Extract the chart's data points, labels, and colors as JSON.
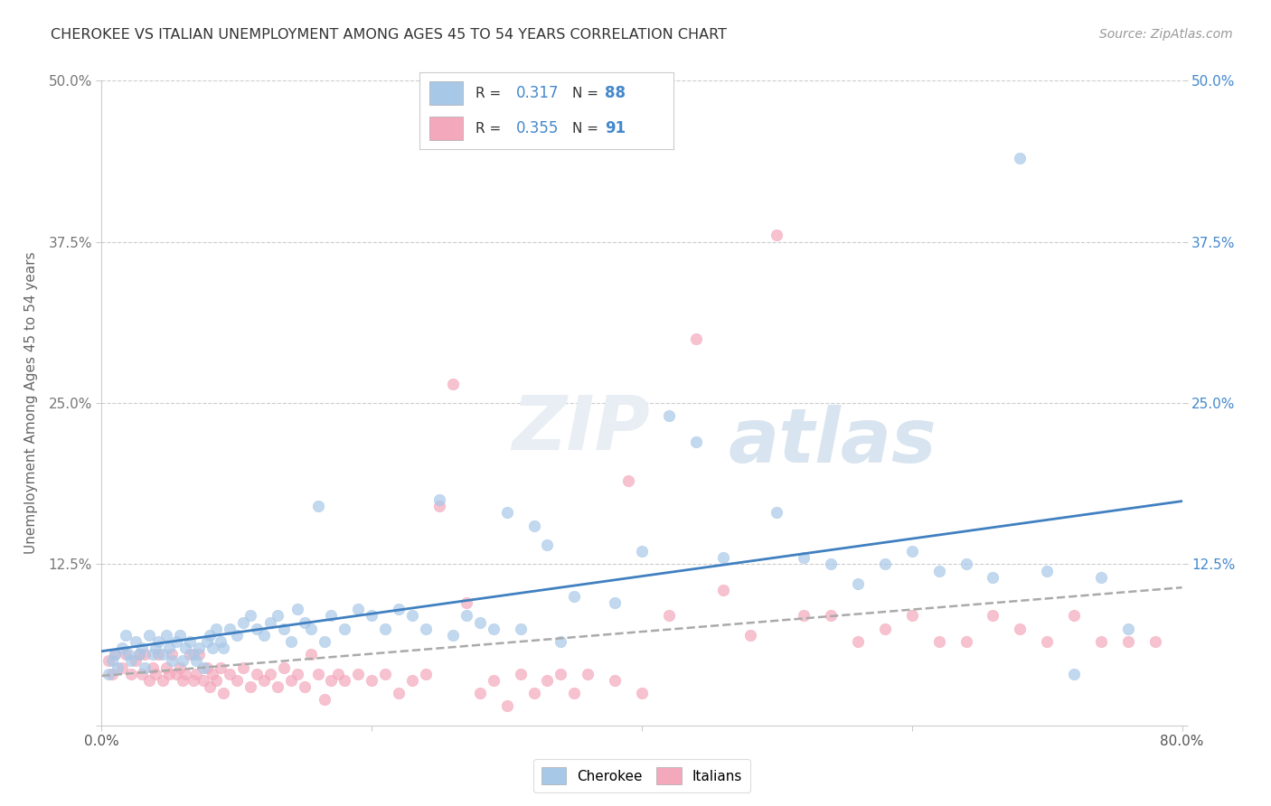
{
  "title": "CHEROKEE VS ITALIAN UNEMPLOYMENT AMONG AGES 45 TO 54 YEARS CORRELATION CHART",
  "source": "Source: ZipAtlas.com",
  "ylabel": "Unemployment Among Ages 45 to 54 years",
  "xlim": [
    0.0,
    0.8
  ],
  "ylim": [
    0.0,
    0.5
  ],
  "xticks": [
    0.0,
    0.2,
    0.4,
    0.6,
    0.8
  ],
  "yticks": [
    0.0,
    0.125,
    0.25,
    0.375,
    0.5
  ],
  "xtick_labels": [
    "0.0%",
    "",
    "",
    "",
    "80.0%"
  ],
  "ytick_labels_left": [
    "",
    "12.5%",
    "25.0%",
    "37.5%",
    "50.0%"
  ],
  "ytick_labels_right": [
    "",
    "12.5%",
    "25.0%",
    "37.5%",
    "50.0%"
  ],
  "legend_labels": [
    "Cherokee",
    "Italians"
  ],
  "R_cherokee": 0.317,
  "N_cherokee": 88,
  "R_italian": 0.355,
  "N_italian": 91,
  "cherokee_color": "#a8c8e8",
  "italian_color": "#f4a8bc",
  "cherokee_line_color": "#4080c0",
  "italian_line_color": "#c0c0c0",
  "title_color": "#333333",
  "source_color": "#999999",
  "grid_color": "#cccccc",
  "right_tick_color": "#4488cc",
  "background_color": "#ffffff",
  "watermark_color": "#e8eef4",
  "cherokee_x": [
    0.005,
    0.008,
    0.01,
    0.012,
    0.015,
    0.018,
    0.02,
    0.022,
    0.025,
    0.028,
    0.03,
    0.032,
    0.035,
    0.038,
    0.04,
    0.042,
    0.045,
    0.048,
    0.05,
    0.052,
    0.055,
    0.058,
    0.06,
    0.062,
    0.065,
    0.068,
    0.07,
    0.072,
    0.075,
    0.078,
    0.08,
    0.082,
    0.085,
    0.088,
    0.09,
    0.095,
    0.1,
    0.105,
    0.11,
    0.115,
    0.12,
    0.125,
    0.13,
    0.135,
    0.14,
    0.145,
    0.15,
    0.155,
    0.16,
    0.165,
    0.17,
    0.18,
    0.19,
    0.2,
    0.21,
    0.22,
    0.23,
    0.24,
    0.25,
    0.26,
    0.27,
    0.28,
    0.29,
    0.3,
    0.31,
    0.32,
    0.33,
    0.34,
    0.35,
    0.38,
    0.4,
    0.42,
    0.44,
    0.46,
    0.5,
    0.52,
    0.54,
    0.56,
    0.58,
    0.6,
    0.62,
    0.64,
    0.66,
    0.68,
    0.7,
    0.72,
    0.74,
    0.76
  ],
  "cherokee_y": [
    0.04,
    0.05,
    0.055,
    0.045,
    0.06,
    0.07,
    0.055,
    0.05,
    0.065,
    0.055,
    0.06,
    0.045,
    0.07,
    0.055,
    0.06,
    0.065,
    0.055,
    0.07,
    0.06,
    0.05,
    0.065,
    0.07,
    0.05,
    0.06,
    0.065,
    0.055,
    0.05,
    0.06,
    0.045,
    0.065,
    0.07,
    0.06,
    0.075,
    0.065,
    0.06,
    0.075,
    0.07,
    0.08,
    0.085,
    0.075,
    0.07,
    0.08,
    0.085,
    0.075,
    0.065,
    0.09,
    0.08,
    0.075,
    0.17,
    0.065,
    0.085,
    0.075,
    0.09,
    0.085,
    0.075,
    0.09,
    0.085,
    0.075,
    0.175,
    0.07,
    0.085,
    0.08,
    0.075,
    0.165,
    0.075,
    0.155,
    0.14,
    0.065,
    0.1,
    0.095,
    0.135,
    0.24,
    0.22,
    0.13,
    0.165,
    0.13,
    0.125,
    0.11,
    0.125,
    0.135,
    0.12,
    0.125,
    0.115,
    0.44,
    0.12,
    0.04,
    0.115,
    0.075
  ],
  "italian_x": [
    0.005,
    0.008,
    0.01,
    0.015,
    0.018,
    0.022,
    0.025,
    0.028,
    0.03,
    0.032,
    0.035,
    0.038,
    0.04,
    0.042,
    0.045,
    0.048,
    0.05,
    0.052,
    0.055,
    0.058,
    0.06,
    0.062,
    0.065,
    0.068,
    0.07,
    0.072,
    0.075,
    0.078,
    0.08,
    0.082,
    0.085,
    0.088,
    0.09,
    0.095,
    0.1,
    0.105,
    0.11,
    0.115,
    0.12,
    0.125,
    0.13,
    0.135,
    0.14,
    0.145,
    0.15,
    0.155,
    0.16,
    0.165,
    0.17,
    0.175,
    0.18,
    0.19,
    0.2,
    0.21,
    0.22,
    0.23,
    0.24,
    0.25,
    0.26,
    0.27,
    0.28,
    0.29,
    0.3,
    0.31,
    0.32,
    0.33,
    0.34,
    0.35,
    0.36,
    0.38,
    0.39,
    0.4,
    0.42,
    0.44,
    0.46,
    0.48,
    0.5,
    0.52,
    0.54,
    0.56,
    0.58,
    0.6,
    0.62,
    0.64,
    0.66,
    0.68,
    0.7,
    0.72,
    0.74,
    0.76,
    0.78
  ],
  "italian_y": [
    0.05,
    0.04,
    0.055,
    0.045,
    0.055,
    0.04,
    0.05,
    0.055,
    0.04,
    0.055,
    0.035,
    0.045,
    0.04,
    0.055,
    0.035,
    0.045,
    0.04,
    0.055,
    0.04,
    0.045,
    0.035,
    0.04,
    0.055,
    0.035,
    0.04,
    0.055,
    0.035,
    0.045,
    0.03,
    0.04,
    0.035,
    0.045,
    0.025,
    0.04,
    0.035,
    0.045,
    0.03,
    0.04,
    0.035,
    0.04,
    0.03,
    0.045,
    0.035,
    0.04,
    0.03,
    0.055,
    0.04,
    0.02,
    0.035,
    0.04,
    0.035,
    0.04,
    0.035,
    0.04,
    0.025,
    0.035,
    0.04,
    0.17,
    0.265,
    0.095,
    0.025,
    0.035,
    0.015,
    0.04,
    0.025,
    0.035,
    0.04,
    0.025,
    0.04,
    0.035,
    0.19,
    0.025,
    0.085,
    0.3,
    0.105,
    0.07,
    0.38,
    0.085,
    0.085,
    0.065,
    0.075,
    0.085,
    0.065,
    0.065,
    0.085,
    0.075,
    0.065,
    0.085,
    0.065,
    0.065,
    0.065
  ]
}
